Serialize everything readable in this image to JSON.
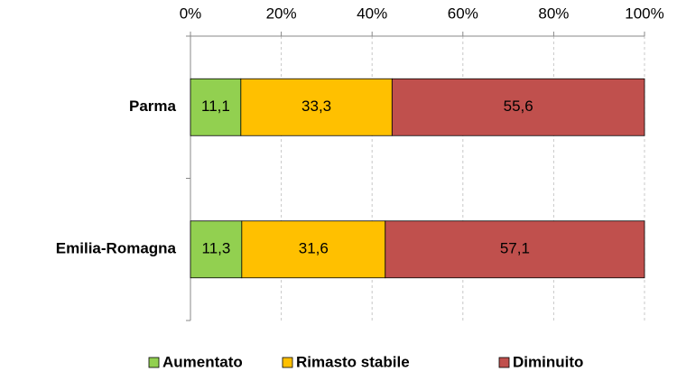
{
  "chart_data": {
    "type": "stacked-bar-horizontal",
    "categories": [
      "Parma",
      "Emilia-Romagna"
    ],
    "series": [
      {
        "name": "Aumentato",
        "color": "#92d050",
        "values": [
          11.1,
          11.3
        ],
        "value_labels": [
          "11,1",
          "11,3"
        ]
      },
      {
        "name": "Rimasto stabile",
        "color": "#ffc000",
        "values": [
          33.3,
          31.6
        ],
        "value_labels": [
          "33,3",
          "31,6"
        ]
      },
      {
        "name": "Diminuito",
        "color": "#c0504d",
        "values": [
          55.6,
          57.1
        ],
        "value_labels": [
          "55,6",
          "57,1"
        ]
      }
    ],
    "xlim": [
      0,
      100
    ],
    "xticks": [
      {
        "value": 0,
        "label": "0%"
      },
      {
        "value": 20,
        "label": "20%"
      },
      {
        "value": 40,
        "label": "40%"
      },
      {
        "value": 60,
        "label": "60%"
      },
      {
        "value": 80,
        "label": "80%"
      },
      {
        "value": 100,
        "label": "100%"
      }
    ],
    "grid": true,
    "legend": "bottom"
  }
}
